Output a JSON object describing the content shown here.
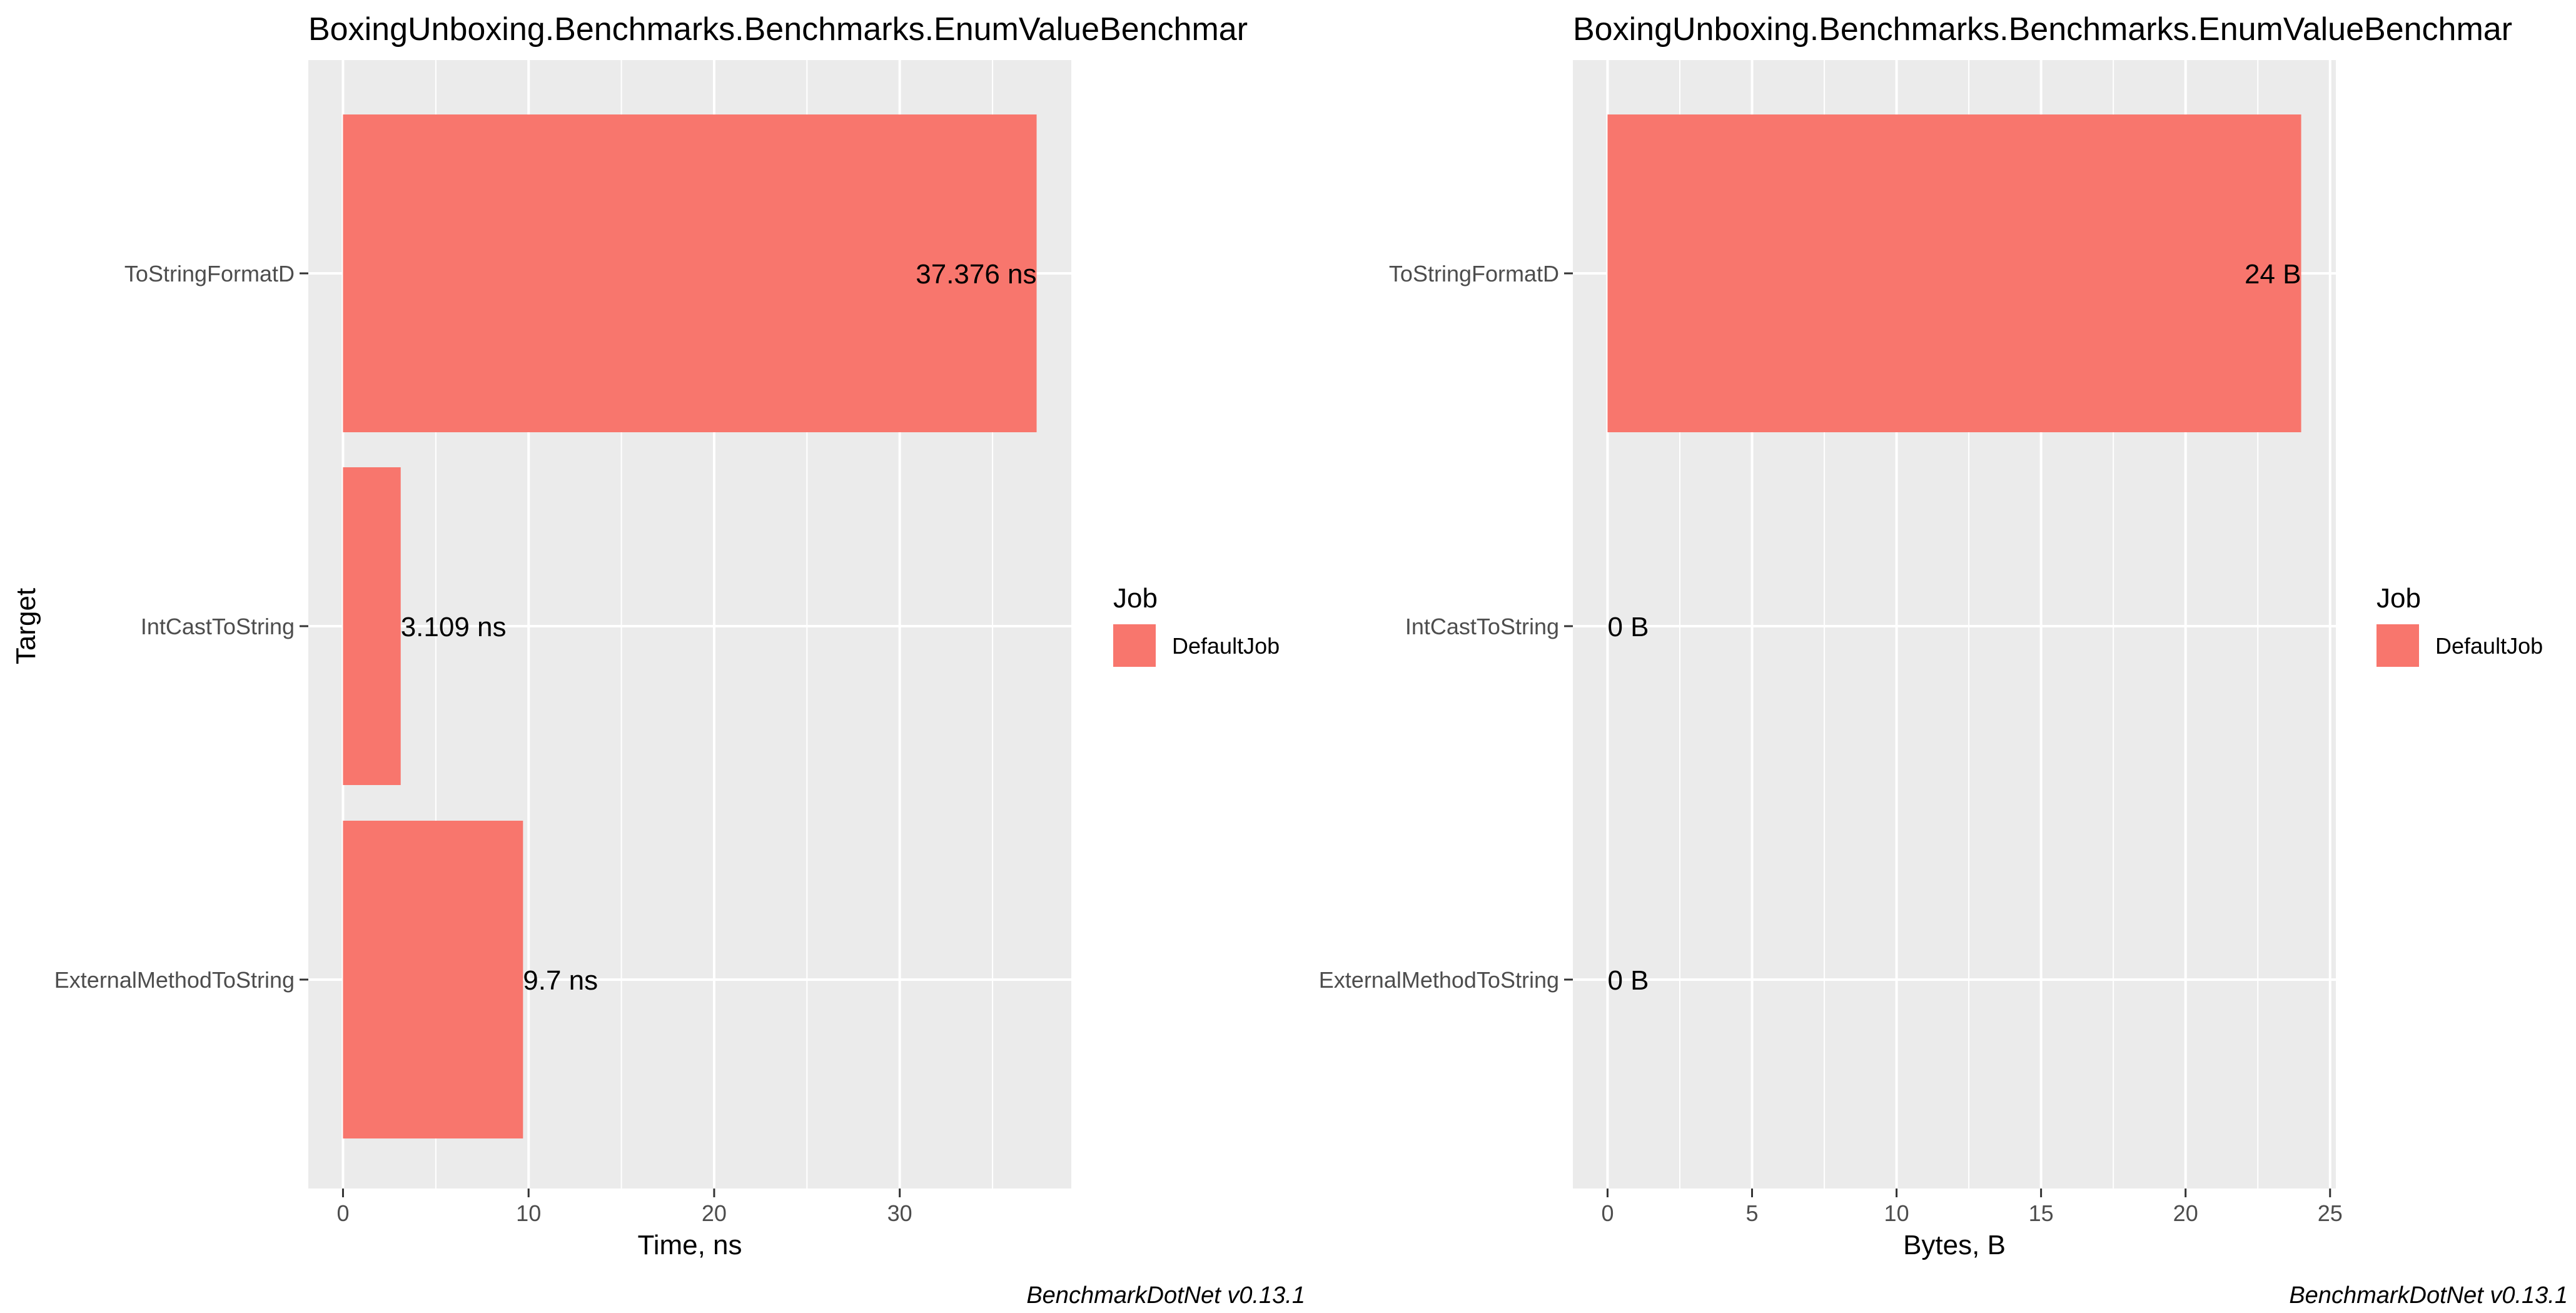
{
  "figure": {
    "y_axis_title": "Target",
    "legend_title": "Job",
    "background_color": "#FFFFFF",
    "panel_color": "#EBEBEB",
    "grid_color": "#FFFFFF",
    "bar_color": "#F8766D"
  },
  "chart_data": [
    {
      "type": "bar",
      "orientation": "horizontal",
      "title": "BoxingUnboxing.Benchmarks.Benchmarks.EnumValueBenchmar",
      "xlabel": "Time, ns",
      "ylabel": "Target",
      "categories": [
        "ToStringFormatD",
        "IntCastToString",
        "ExternalMethodToString"
      ],
      "series": [
        {
          "name": "DefaultJob",
          "values": [
            37.376,
            3.109,
            9.7
          ],
          "color": "#F8766D"
        }
      ],
      "data_labels": [
        "37.376 ns",
        "3.109 ns",
        "9.7 ns"
      ],
      "xlim": [
        -1.869,
        39.245
      ],
      "xticks": [
        0,
        10,
        20,
        30
      ],
      "xtick_labels": [
        "0",
        "10",
        "20",
        "30"
      ],
      "grid": true,
      "legend": {
        "title": "Job",
        "entries": [
          "DefaultJob"
        ],
        "placement": "right"
      },
      "caption": "BenchmarkDotNet v0.13.1"
    },
    {
      "type": "bar",
      "orientation": "horizontal",
      "title": "BoxingUnboxing.Benchmarks.Benchmarks.EnumValueBenchmar",
      "xlabel": "Bytes, B",
      "ylabel": "",
      "categories": [
        "ToStringFormatD",
        "IntCastToString",
        "ExternalMethodToString"
      ],
      "series": [
        {
          "name": "DefaultJob",
          "values": [
            24,
            0,
            0
          ],
          "color": "#F8766D"
        }
      ],
      "data_labels": [
        "24 B",
        "0 B",
        "0 B"
      ],
      "xlim": [
        -1.2,
        25.2
      ],
      "xticks": [
        0,
        5,
        10,
        15,
        20,
        25
      ],
      "xtick_labels": [
        "0",
        "5",
        "10",
        "15",
        "20",
        "25"
      ],
      "grid": true,
      "legend": {
        "title": "Job",
        "entries": [
          "DefaultJob"
        ],
        "placement": "right"
      },
      "caption": "BenchmarkDotNet v0.13.1"
    }
  ]
}
